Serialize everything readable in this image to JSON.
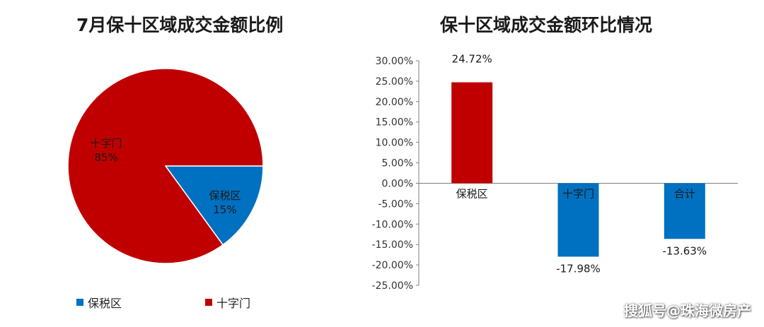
{
  "colors": {
    "red": "#C00000",
    "blue": "#0070C0"
  },
  "chart_data": [
    {
      "type": "pie",
      "title": "7月保十区域成交金额比例",
      "slices": [
        {
          "label": "保税区",
          "value": 15,
          "value_label": "15%",
          "color": "#0070C0"
        },
        {
          "label": "十字门",
          "value": 85,
          "value_label": "85%",
          "color": "#C00000"
        }
      ],
      "legend": [
        "保税区",
        "十字门"
      ],
      "legend_position": "bottom"
    },
    {
      "type": "bar",
      "title": "保十区域成交金额环比情况",
      "categories": [
        "保税区",
        "十字门",
        "合计"
      ],
      "values": [
        24.72,
        -17.98,
        -13.63
      ],
      "value_labels": [
        "24.72%",
        "-17.98%",
        "-13.63%"
      ],
      "colors": [
        "#C00000",
        "#0070C0",
        "#0070C0"
      ],
      "ylim": [
        -25,
        30
      ],
      "yticks": [
        "30.00%",
        "25.00%",
        "20.00%",
        "15.00%",
        "10.00%",
        "5.00%",
        "0.00%",
        "-5.00%",
        "-10.00%",
        "-15.00%",
        "-20.00%",
        "-25.00%"
      ],
      "grid": false
    }
  ],
  "watermark": "搜狐号@珠海微房产"
}
